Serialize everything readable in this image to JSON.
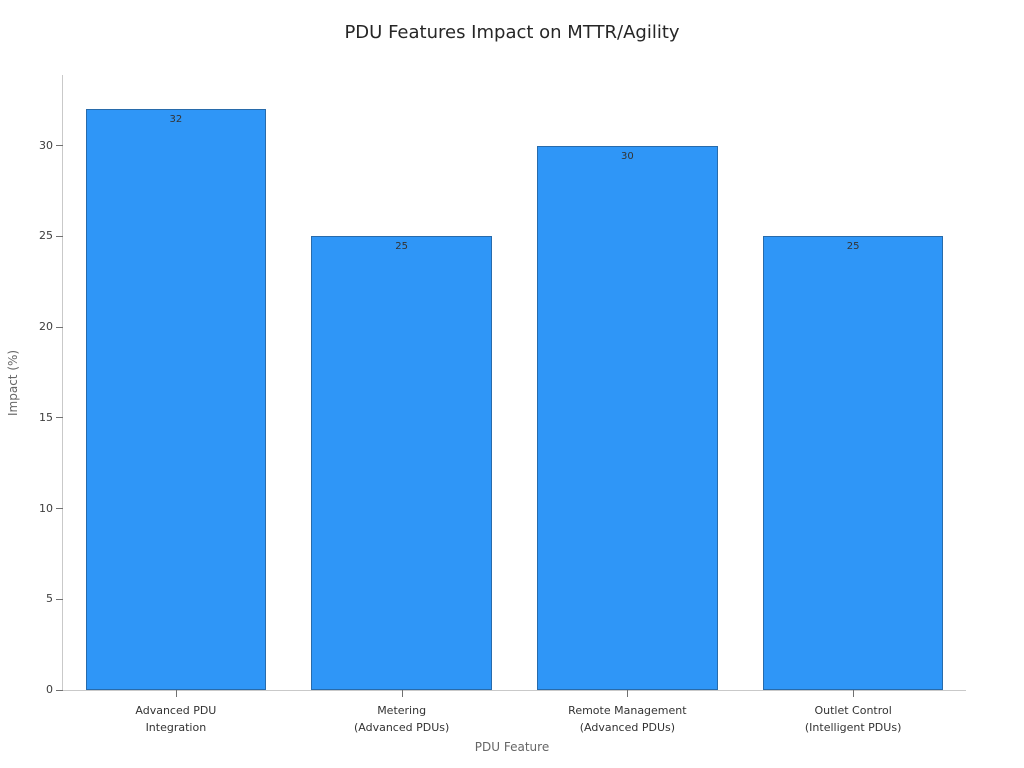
{
  "chart_data": {
    "type": "bar",
    "title": "PDU Features Impact on MTTR/Agility",
    "xlabel": "PDU Feature",
    "ylabel": "Impact (%)",
    "categories": [
      "Advanced PDU\nIntegration",
      "Metering\n(Advanced PDUs)",
      "Remote Management\n(Advanced PDUs)",
      "Outlet Control\n(Intelligent PDUs)"
    ],
    "values": [
      32,
      25,
      30,
      25
    ],
    "bar_labels": [
      "32",
      "25",
      "30",
      "25"
    ],
    "ylim": [
      0,
      33.9
    ],
    "yticks": [
      0,
      5,
      10,
      15,
      20,
      25,
      30
    ],
    "bar_color": "#2f96f7",
    "grid": "off",
    "legend": "none"
  }
}
